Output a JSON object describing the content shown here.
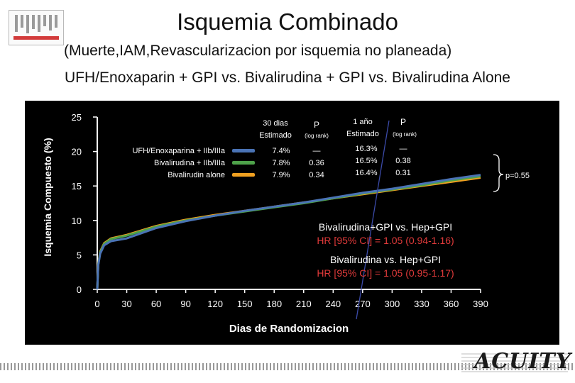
{
  "header": {
    "title": "Isquemia Combinado",
    "subtitle": "(Muerte,IAM,Revascularizacion por isquemia no planeada)",
    "comparison": "UFH/Enoxaparin + GPI vs. Bivalirudina + GPI vs. Bivalirudina Alone"
  },
  "logo": {
    "name": "conference-logo"
  },
  "brand": {
    "text": "ACUITY"
  },
  "chart_data": {
    "type": "line",
    "xlabel": "Dias de Randomizacion",
    "ylabel": "Isquemia Compuesto (%)",
    "xlim": [
      0,
      390
    ],
    "ylim": [
      0,
      25
    ],
    "x_ticks": [
      "0",
      "30",
      "60",
      "90",
      "120",
      "150",
      "180",
      "210",
      "240",
      "270",
      "300",
      "330",
      "360",
      "390"
    ],
    "y_ticks": [
      "0",
      "5",
      "10",
      "15",
      "20",
      "25"
    ],
    "x": [
      0,
      1,
      3,
      7,
      14,
      30,
      60,
      90,
      120,
      150,
      180,
      210,
      240,
      270,
      300,
      330,
      360,
      390
    ],
    "series": [
      {
        "name": "UFH/Enoxaparina + IIb/IIIa",
        "color": "#4a73b5",
        "values": [
          0,
          3.5,
          5.2,
          6.4,
          7.0,
          7.4,
          8.9,
          9.9,
          10.7,
          11.4,
          12.0,
          12.6,
          13.3,
          14.0,
          14.6,
          15.3,
          16.0,
          16.6
        ]
      },
      {
        "name": "Bivalirudina + IIb/IIIa",
        "color": "#4ea24a",
        "values": [
          0,
          3.6,
          5.4,
          6.6,
          7.3,
          7.8,
          9.1,
          10.0,
          10.7,
          11.3,
          11.9,
          12.5,
          13.2,
          13.9,
          14.5,
          15.1,
          15.8,
          16.4
        ]
      },
      {
        "name": "Bivalirudin alone",
        "color": "#f0a020",
        "values": [
          0,
          3.7,
          5.5,
          6.7,
          7.4,
          7.9,
          9.2,
          10.1,
          10.8,
          11.4,
          12.0,
          12.6,
          13.2,
          13.8,
          14.4,
          15.0,
          15.6,
          16.2
        ]
      }
    ],
    "table": {
      "headers": {
        "d30": "30 dias\nEstimado",
        "p": "P",
        "p_note": "(log rank)",
        "y1": "1 año\nEstimado",
        "p2": "P",
        "p2_note": "(log rank)"
      },
      "rows": [
        {
          "label": "UFH/Enoxaparina + IIb/IIIa",
          "d30": "7.4%",
          "p30": "—",
          "y1": "16.3%",
          "p1": "—"
        },
        {
          "label": "Bivalirudina + IIb/IIIa",
          "d30": "7.8%",
          "p30": "0.36",
          "y1": "16.5%",
          "p1": "0.38"
        },
        {
          "label": "Bivalirudin alone",
          "d30": "7.9%",
          "p30": "0.34",
          "y1": "16.4%",
          "p1": "0.31"
        }
      ]
    },
    "annotations": {
      "p_value": "p=0.55",
      "hr1_label": "Bivalirudina+GPI vs. Hep+GPI",
      "hr1_value": "HR [95% CI] = 1.05 (0.94-1.16)",
      "hr2_label": "Bivalirudina  vs. Hep+GPI",
      "hr2_value": "HR [95% CI] = 1.05 (0.95-1.17)"
    }
  }
}
